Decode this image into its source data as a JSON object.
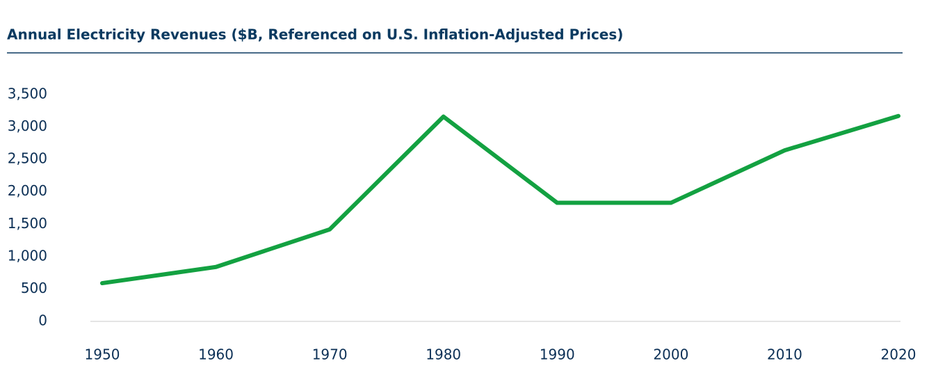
{
  "chart_data": {
    "type": "line",
    "title": "Annual Electricity Revenues ($B, Referenced on U.S. Inflation-Adjusted Prices)",
    "x": [
      1950,
      1960,
      1970,
      1980,
      1990,
      2000,
      2010,
      2020
    ],
    "xlim": [
      1950,
      2020
    ],
    "xticks": [
      1950,
      1960,
      1970,
      1980,
      1990,
      2000,
      2010,
      2020
    ],
    "series": [
      {
        "color": "#13a141",
        "values": [
          590,
          840,
          1420,
          3160,
          1830,
          1830,
          2640,
          3170
        ]
      }
    ],
    "ylim": [
      0,
      3500
    ],
    "yticks": [
      0,
      500,
      {
        "value": 1000,
        "label": "1,000"
      },
      {
        "value": 1500,
        "label": "1,500"
      },
      {
        "value": 2000,
        "label": "2,000"
      },
      {
        "value": 2500,
        "label": "2,500"
      },
      {
        "value": 3000,
        "label": "3,000"
      },
      {
        "value": 3500,
        "label": "3,500"
      }
    ],
    "grid": false
  }
}
